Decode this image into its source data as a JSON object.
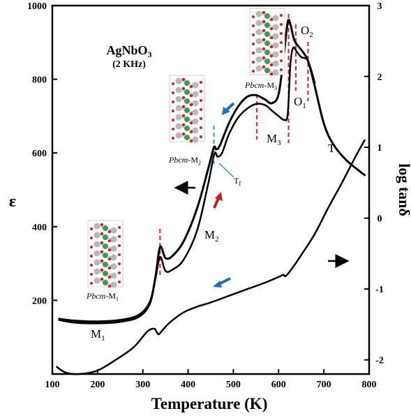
{
  "chart_data": {
    "type": "line",
    "title": "AgNbO3",
    "subtitle": "(2 KHz)",
    "xlabel": "Temperature (K)",
    "ylabel_left": "ε",
    "ylabel_right": "log tanδ",
    "xlim": [
      100,
      800
    ],
    "ylim_left": [
      0,
      1000
    ],
    "ylim_right": [
      -2.2,
      3.0
    ],
    "x_ticks": [
      100,
      200,
      300,
      400,
      500,
      600,
      700,
      800
    ],
    "y_left_ticks": [
      200,
      400,
      600,
      800,
      1000
    ],
    "y_right_ticks": [
      -2,
      -1,
      0,
      1,
      2,
      3
    ],
    "grid": false,
    "series": [
      {
        "id": "eps_cooling",
        "axis": "left",
        "x": [
          115,
          150,
          200,
          250,
          290,
          315,
          328,
          338,
          350,
          365,
          390,
          420,
          445,
          457,
          462,
          470,
          490,
          510,
          530,
          550,
          570,
          585,
          600,
          612,
          620,
          626,
          635,
          650,
          665,
          680,
          700,
          720,
          750,
          790
        ],
        "y": [
          147,
          140,
          138,
          142,
          155,
          190,
          265,
          345,
          315,
          320,
          360,
          450,
          560,
          615,
          610,
          620,
          680,
          725,
          752,
          757,
          745,
          735,
          760,
          870,
          955,
          950,
          905,
          880,
          850,
          780,
          680,
          625,
          580,
          540
        ]
      },
      {
        "id": "eps_heating",
        "axis": "left",
        "x": [
          115,
          150,
          200,
          250,
          290,
          315,
          328,
          338,
          350,
          365,
          390,
          420,
          445,
          458,
          465,
          475,
          490,
          510,
          530,
          550,
          570,
          585,
          600,
          612,
          620,
          626,
          632,
          640,
          650,
          665,
          680
        ],
        "y": [
          150,
          145,
          143,
          147,
          160,
          195,
          260,
          318,
          280,
          283,
          310,
          390,
          520,
          598,
          590,
          600,
          650,
          695,
          720,
          733,
          730,
          715,
          700,
          690,
          705,
          840,
          885,
          875,
          860,
          850,
          790
        ]
      },
      {
        "id": "log_tan_delta",
        "axis": "right",
        "x": [
          110,
          130,
          160,
          200,
          240,
          280,
          310,
          325,
          330,
          335,
          345,
          360,
          390,
          420,
          450,
          480,
          510,
          540,
          570,
          600,
          610,
          615,
          625,
          650,
          680,
          710,
          740,
          770,
          790
        ],
        "y": [
          -2.1,
          -2.18,
          -2.2,
          -2.15,
          -2.0,
          -1.82,
          -1.6,
          -1.56,
          -1.6,
          -1.64,
          -1.57,
          -1.47,
          -1.33,
          -1.25,
          -1.19,
          -1.12,
          -1.05,
          -0.98,
          -0.91,
          -0.83,
          -0.8,
          -0.82,
          -0.75,
          -0.52,
          -0.22,
          0.15,
          0.5,
          0.87,
          1.1
        ]
      }
    ],
    "annotations": {
      "M1": "M",
      "M1_sub": "1",
      "M2": "M",
      "M2_sub": "2",
      "M3": "M",
      "M3_sub": "3",
      "O1": "O",
      "O1_sub": "1",
      "O2": "O",
      "O2_sub": "2",
      "T": "T",
      "Tf": "T",
      "Tf_sub": "f",
      "pbcm": "Pbcm",
      "pbcm_m1": "-M",
      "pbcm_m1_sub": "1",
      "pbcm_m2": "-M",
      "pbcm_m2_sub": "2",
      "pbcm_m3": "-M",
      "pbcm_m3_sub": "3"
    },
    "transition_temperatures": [
      338,
      457,
      552,
      622,
      638,
      665
    ],
    "colors": {
      "curve": "#000000",
      "transition_dash": "#e02020",
      "arrow_blue": "#1f6fc0",
      "arrow_red": "#c81e1e",
      "tf_marker": "#3a8fd6"
    }
  }
}
